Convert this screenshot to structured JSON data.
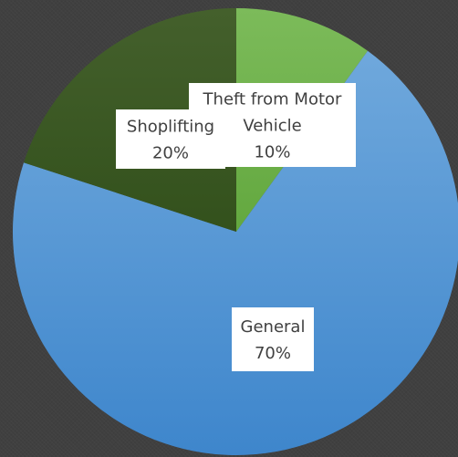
{
  "chart_data": {
    "type": "pie",
    "title": "",
    "slices": [
      {
        "label": "Theft from Motor Vehicle",
        "label_lines": [
          "Theft from Motor",
          "Vehicle"
        ],
        "value": 10,
        "percent_text": "10%",
        "color": "#70AD47"
      },
      {
        "label": "General",
        "label_lines": [
          "General"
        ],
        "value": 70,
        "percent_text": "70%",
        "color": "#5B9BD5"
      },
      {
        "label": "Shoplifting",
        "label_lines": [
          "Shoplifting"
        ],
        "value": 20,
        "percent_text": "20%",
        "color": "#375623"
      }
    ],
    "legend": "none",
    "start_angle": "12 o'clock",
    "direction": "clockwise"
  }
}
